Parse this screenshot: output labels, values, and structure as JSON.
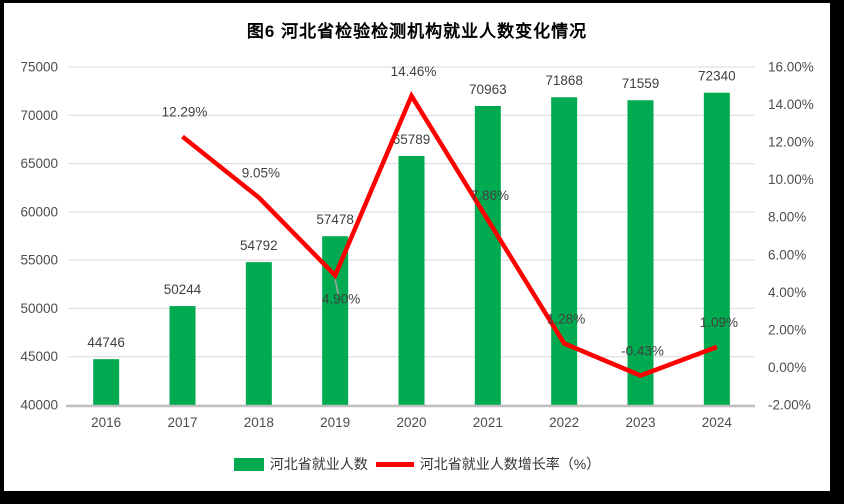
{
  "chart_data": {
    "type": "bar",
    "subtype": "bar+line combo, dual axis",
    "title": "图6 河北省检验检测机构就业人数变化情况",
    "categories": [
      "2016",
      "2017",
      "2018",
      "2019",
      "2020",
      "2021",
      "2022",
      "2023",
      "2024"
    ],
    "series": [
      {
        "name": "河北省就业人数",
        "type": "bar",
        "axis": "left",
        "color": "#00AA50",
        "values": [
          44746,
          50244,
          54792,
          57478,
          65789,
          70963,
          71868,
          71559,
          72340
        ],
        "labels": [
          "44746",
          "50244",
          "54792",
          "57478",
          "65789",
          "70963",
          "71868",
          "71559",
          "72340"
        ]
      },
      {
        "name": "河北省就业人数增长率（%）",
        "type": "line",
        "axis": "right",
        "color": "#FF0000",
        "values": [
          null,
          12.29,
          9.05,
          4.9,
          14.46,
          7.86,
          1.28,
          -0.43,
          1.09
        ],
        "labels": [
          "",
          "12.29%",
          "9.05%",
          "4.90%",
          "14.46%",
          "7.86%",
          "1.28%",
          "-0.43%",
          "1.09%"
        ],
        "label_side": [
          "",
          "above",
          "above",
          "below",
          "above",
          "above",
          "above",
          "above",
          "above"
        ]
      }
    ],
    "left_axis": {
      "min": 40000,
      "max": 75000,
      "step": 5000,
      "tick_labels": [
        "40000",
        "45000",
        "50000",
        "55000",
        "60000",
        "65000",
        "70000",
        "75000"
      ]
    },
    "right_axis": {
      "min": -2,
      "max": 16,
      "step": 2,
      "tick_labels": [
        "-2.00%",
        "0.00%",
        "2.00%",
        "4.00%",
        "6.00%",
        "8.00%",
        "10.00%",
        "12.00%",
        "14.00%",
        "16.00%"
      ]
    },
    "grid": true,
    "legend_position": "bottom",
    "colors": {
      "gridline": "#D9D9D9",
      "axis_line": "#BFBFBF",
      "tick_text": "#4d4d4d",
      "data_label_text": "#404040",
      "leader_line": "#A6A6A6"
    }
  }
}
